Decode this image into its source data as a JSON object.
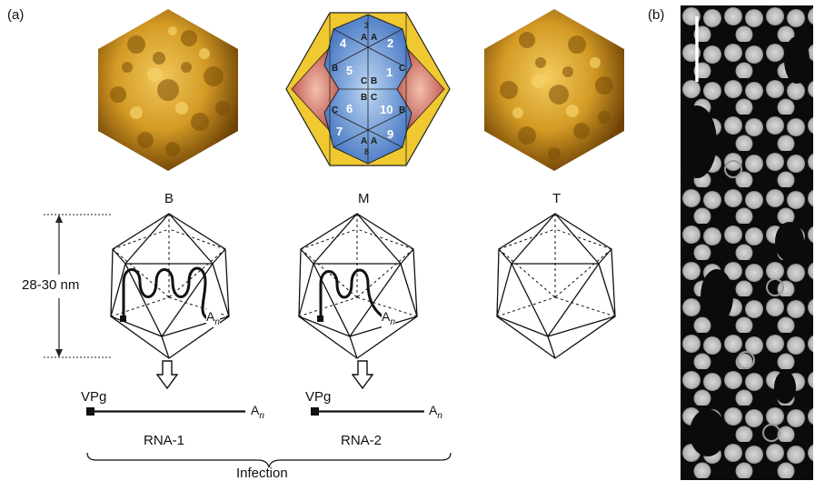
{
  "panel_a": {
    "tag": "(a)",
    "particle_labels": [
      "B",
      "M",
      "T"
    ],
    "dimension": "28-30 nm",
    "genome_end": "A",
    "genome_end_sub": "n",
    "rna1": {
      "name": "RNA-1",
      "cap": "VPg",
      "tail": "A",
      "tail_sub": "n"
    },
    "rna2": {
      "name": "RNA-2",
      "cap": "VPg",
      "tail": "A",
      "tail_sub": "n"
    },
    "outcome": "Infection",
    "map_numbers": [
      "1",
      "2",
      "3",
      "4",
      "5",
      "6",
      "7",
      "8",
      "9",
      "10"
    ],
    "map_letters": [
      "A",
      "B",
      "C"
    ]
  },
  "panel_b": {
    "tag": "(b)"
  },
  "colors": {
    "capsid_gold": "#d7a12a",
    "capsid_dark": "#7a4d08",
    "map_blue": "#4a7fd0",
    "map_red": "#c75a4a",
    "map_yellow": "#f0c830"
  }
}
